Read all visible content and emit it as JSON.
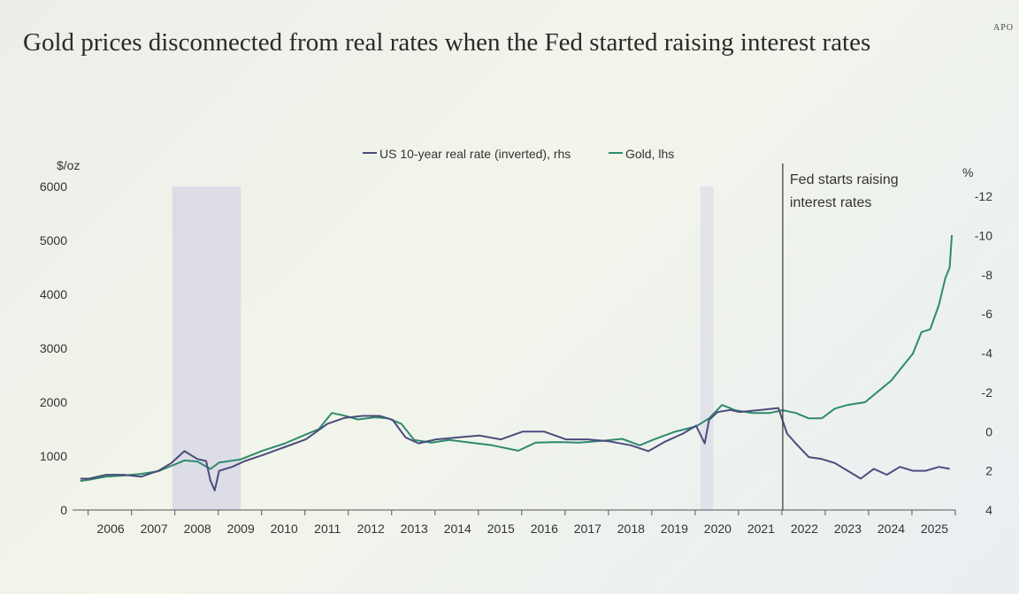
{
  "brand": "APO",
  "title": "Gold prices disconnected from real rates when the Fed started raising interest rates",
  "chart_data": {
    "type": "line",
    "legend": [
      "US 10-year real rate (inverted), rhs",
      "Gold, lhs"
    ],
    "left_axis": {
      "label": "$/oz",
      "ticks": [
        "0",
        "1000",
        "2000",
        "3000",
        "4000",
        "5000",
        "6000"
      ],
      "range": [
        0,
        6000
      ]
    },
    "right_axis": {
      "label": "%",
      "ticks": [
        "4",
        "2",
        "0",
        "-2",
        "-4",
        "-6",
        "-8",
        "-10",
        "-12"
      ],
      "range": [
        4,
        -12
      ],
      "inverted": true
    },
    "x_ticks": [
      "2006",
      "2007",
      "2008",
      "2009",
      "2010",
      "2011",
      "2012",
      "2013",
      "2014",
      "2015",
      "2016",
      "2017",
      "2018",
      "2019",
      "2020",
      "2021",
      "2022",
      "2023",
      "2024",
      "2025"
    ],
    "x_range": [
      2005.75,
      2025.9
    ],
    "annotation": {
      "lines": [
        "Fed starts raising",
        "interest rates"
      ],
      "x": 2022.0
    },
    "recession_shading": [
      [
        2007.92,
        2009.5
      ],
      [
        2020.1,
        2020.4
      ]
    ],
    "colors": {
      "gold": "#2e8a6e",
      "real_rate": "#4a4c7c",
      "shade": "#d8d8e6",
      "axis": "#555555"
    },
    "series": [
      {
        "name": "Gold, lhs",
        "axis": "left",
        "x": [
          2005.8,
          2006.0,
          2006.4,
          2006.8,
          2007.2,
          2007.6,
          2007.9,
          2008.2,
          2008.5,
          2008.8,
          2009.0,
          2009.5,
          2010.0,
          2010.5,
          2011.0,
          2011.3,
          2011.6,
          2011.9,
          2012.2,
          2012.6,
          2012.9,
          2013.2,
          2013.5,
          2013.9,
          2014.3,
          2014.8,
          2015.3,
          2015.9,
          2016.3,
          2016.8,
          2017.3,
          2017.8,
          2018.3,
          2018.7,
          2019.0,
          2019.5,
          2020.0,
          2020.3,
          2020.6,
          2020.9,
          2021.3,
          2021.7,
          2022.0,
          2022.3,
          2022.6,
          2022.9,
          2023.2,
          2023.5,
          2023.9,
          2024.2,
          2024.5,
          2024.8,
          2025.0,
          2025.2,
          2025.4,
          2025.6,
          2025.75,
          2025.85,
          2025.9
        ],
        "values": [
          540,
          560,
          620,
          640,
          670,
          720,
          820,
          920,
          900,
          760,
          880,
          940,
          1100,
          1230,
          1400,
          1500,
          1800,
          1750,
          1680,
          1720,
          1700,
          1600,
          1300,
          1250,
          1300,
          1250,
          1200,
          1100,
          1250,
          1260,
          1250,
          1280,
          1320,
          1200,
          1300,
          1450,
          1550,
          1700,
          1950,
          1850,
          1800,
          1800,
          1850,
          1800,
          1700,
          1700,
          1880,
          1950,
          2000,
          2200,
          2400,
          2700,
          2900,
          3300,
          3350,
          3800,
          4300,
          4500,
          5100
        ]
      },
      {
        "name": "US 10-year real rate (inverted), rhs",
        "axis": "right",
        "x": [
          2005.8,
          2006.0,
          2006.4,
          2006.8,
          2007.2,
          2007.6,
          2007.9,
          2008.2,
          2008.5,
          2008.7,
          2008.8,
          2008.9,
          2009.0,
          2009.3,
          2009.6,
          2010.0,
          2010.5,
          2011.0,
          2011.5,
          2011.9,
          2012.3,
          2012.7,
          2013.0,
          2013.3,
          2013.6,
          2014.0,
          2014.5,
          2015.0,
          2015.5,
          2016.0,
          2016.5,
          2017.0,
          2017.5,
          2018.0,
          2018.5,
          2018.9,
          2019.3,
          2019.7,
          2020.0,
          2020.2,
          2020.3,
          2020.5,
          2020.8,
          2021.0,
          2021.5,
          2021.9,
          2022.1,
          2022.3,
          2022.6,
          2022.9,
          2023.2,
          2023.5,
          2023.8,
          2024.1,
          2024.4,
          2024.7,
          2025.0,
          2025.3,
          2025.6,
          2025.85
        ],
        "values": [
          2.4,
          2.4,
          2.2,
          2.2,
          2.3,
          2.0,
          1.6,
          1.0,
          1.4,
          1.5,
          2.5,
          3.0,
          2.0,
          1.8,
          1.5,
          1.2,
          0.8,
          0.4,
          -0.4,
          -0.7,
          -0.8,
          -0.8,
          -0.6,
          0.3,
          0.6,
          0.4,
          0.3,
          0.2,
          0.4,
          0.0,
          0.0,
          0.4,
          0.4,
          0.5,
          0.7,
          1.0,
          0.5,
          0.1,
          -0.3,
          0.6,
          -0.6,
          -1.0,
          -1.1,
          -1.0,
          -1.1,
          -1.2,
          0.1,
          0.6,
          1.3,
          1.4,
          1.6,
          2.0,
          2.4,
          1.9,
          2.2,
          1.8,
          2.0,
          2.0,
          1.8,
          1.9
        ]
      }
    ]
  }
}
